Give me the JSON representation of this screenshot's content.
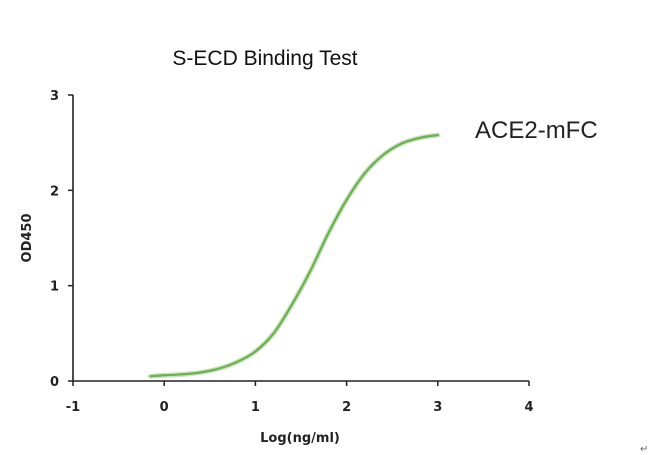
{
  "chart_data": {
    "type": "line",
    "title": "S-ECD Binding Test",
    "xlabel": "Log(ng/ml)",
    "ylabel": "OD450",
    "xlim": [
      -1,
      4
    ],
    "ylim": [
      0,
      3
    ],
    "xticks": [
      "-1",
      "0",
      "1",
      "2",
      "3",
      "4"
    ],
    "yticks": [
      "0",
      "1",
      "2",
      "3"
    ],
    "grid": false,
    "annotation": "ACE2-mFC",
    "series": [
      {
        "color": "#6ab04c",
        "x": [
          -0.15,
          0.0,
          0.2,
          0.4,
          0.6,
          0.8,
          1.0,
          1.2,
          1.4,
          1.6,
          1.8,
          2.0,
          2.2,
          2.4,
          2.6,
          2.8,
          3.0
        ],
        "y": [
          0.05,
          0.06,
          0.07,
          0.09,
          0.13,
          0.2,
          0.31,
          0.5,
          0.8,
          1.15,
          1.55,
          1.9,
          2.18,
          2.37,
          2.49,
          2.55,
          2.58
        ]
      }
    ]
  },
  "page": {
    "return_mark": "↵"
  }
}
